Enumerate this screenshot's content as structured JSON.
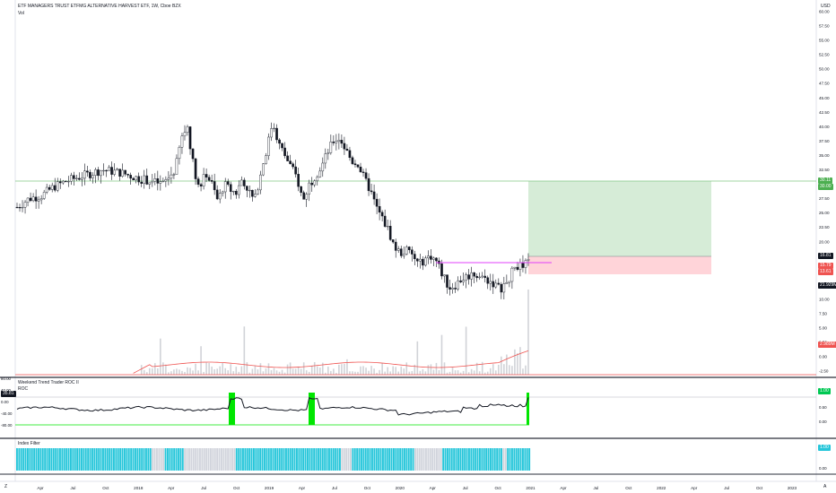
{
  "header": {
    "symbol_title": "ETF MANAGERS TRUST ETFMG ALTERNATIVE HARVEST ETF, 1W, Cboe BZX",
    "vol_label": "Vol",
    "currency": "USD"
  },
  "price_axis": [
    "60.00",
    "57.50",
    "55.00",
    "52.50",
    "50.00",
    "47.50",
    "45.00",
    "42.50",
    "40.00",
    "37.50",
    "35.00",
    "32.50",
    "30.00",
    "27.50",
    "25.00",
    "22.50",
    "20.00",
    "17.50",
    "15.00",
    "12.50",
    "10.00",
    "7.50",
    "5.00",
    "2.50",
    "0.00",
    "-2.50"
  ],
  "price_badges": [
    {
      "text": "30.11",
      "color": "#4caf50"
    },
    {
      "text": "30.00",
      "color": "#4caf50"
    },
    {
      "text": "16.81",
      "color": "#131722"
    },
    {
      "text": "15.79",
      "color": "#ef5350"
    },
    {
      "text": "13.61",
      "color": "#ef5350"
    },
    {
      "text": "21.929M",
      "color": "#131722"
    },
    {
      "text": "2.989M",
      "color": "#ef5350"
    }
  ],
  "roc_panel": {
    "title": "Weekend Trend Trader ROC II",
    "series_label": "ROC",
    "current_value": "35.81",
    "left_axis": [
      "80.00",
      "40.00",
      "0.00",
      "-40.00",
      "-80.00"
    ],
    "right_axis": [
      "1.00",
      "0.50",
      "0.00"
    ],
    "right_badge": "1.00"
  },
  "index_panel": {
    "title": "Index Filter",
    "right_axis": [
      "1.00",
      "0.00"
    ],
    "right_badge": "1.00"
  },
  "time_axis": [
    "Apr",
    "Jul",
    "Oct",
    "2018",
    "Apr",
    "Jul",
    "Oct",
    "2019",
    "Apr",
    "Jul",
    "Oct",
    "2020",
    "Apr",
    "Jul",
    "Oct",
    "2021",
    "Apr",
    "Jul",
    "Oct",
    "2022",
    "Apr",
    "Jul",
    "Oct",
    "2023"
  ],
  "corner_labels": {
    "left": "Z",
    "right": "A"
  },
  "colors": {
    "up": "#ffffff",
    "down": "#131722",
    "volume_ma": "#ef5350",
    "target": "#c8e6c9",
    "stop": "#ffcdd2",
    "resistance": "#e040fb",
    "roc_highlight": "#00e600",
    "index_on": "#26c6da",
    "index_off": "#d1d4dc"
  },
  "chart_data": {
    "type": "candlestick",
    "timeframe": "1W",
    "ylim": [
      -2.5,
      60
    ],
    "price_path": [
      [
        0,
        26
      ],
      [
        10,
        27.5
      ],
      [
        20,
        28
      ],
      [
        30,
        29.5
      ],
      [
        40,
        30.5
      ],
      [
        55,
        31.5
      ],
      [
        70,
        32.5
      ],
      [
        85,
        32
      ],
      [
        100,
        31
      ],
      [
        110,
        30.5
      ],
      [
        120,
        30
      ],
      [
        130,
        32.5
      ],
      [
        135,
        38
      ],
      [
        140,
        40
      ],
      [
        145,
        33
      ],
      [
        150,
        29
      ],
      [
        155,
        32
      ],
      [
        160,
        30
      ],
      [
        165,
        27
      ],
      [
        170,
        30
      ],
      [
        175,
        29
      ],
      [
        180,
        28.5
      ],
      [
        185,
        31
      ],
      [
        190,
        29
      ],
      [
        195,
        27
      ],
      [
        200,
        32
      ],
      [
        205,
        36
      ],
      [
        210,
        41
      ],
      [
        215,
        37
      ],
      [
        220,
        35
      ],
      [
        225,
        33
      ],
      [
        230,
        31
      ],
      [
        235,
        27
      ],
      [
        240,
        30
      ],
      [
        245,
        31.5
      ],
      [
        250,
        33
      ],
      [
        255,
        35.5
      ],
      [
        260,
        37.5
      ],
      [
        265,
        38
      ],
      [
        270,
        36
      ],
      [
        275,
        34
      ],
      [
        280,
        33.5
      ],
      [
        285,
        31
      ],
      [
        290,
        29
      ],
      [
        295,
        26
      ],
      [
        300,
        24
      ],
      [
        305,
        22
      ],
      [
        310,
        19
      ],
      [
        315,
        18
      ],
      [
        320,
        18.5
      ],
      [
        325,
        17.5
      ],
      [
        330,
        16
      ],
      [
        335,
        17
      ],
      [
        340,
        17.5
      ],
      [
        345,
        16.5
      ],
      [
        350,
        14
      ],
      [
        355,
        12
      ],
      [
        360,
        12.5
      ],
      [
        365,
        13.5
      ],
      [
        370,
        14
      ],
      [
        375,
        14.5
      ],
      [
        380,
        14
      ],
      [
        385,
        13.5
      ],
      [
        390,
        13
      ],
      [
        395,
        12
      ],
      [
        400,
        12
      ],
      [
        405,
        14
      ],
      [
        410,
        16
      ],
      [
        415,
        15.5
      ],
      [
        420,
        16.5
      ]
    ],
    "resistance_level": 16.2,
    "position": {
      "entry": 16.81,
      "target": 30.11,
      "stop": 13.61
    },
    "volume_current": "21.929M",
    "volume_ma_current": "2.989M"
  }
}
